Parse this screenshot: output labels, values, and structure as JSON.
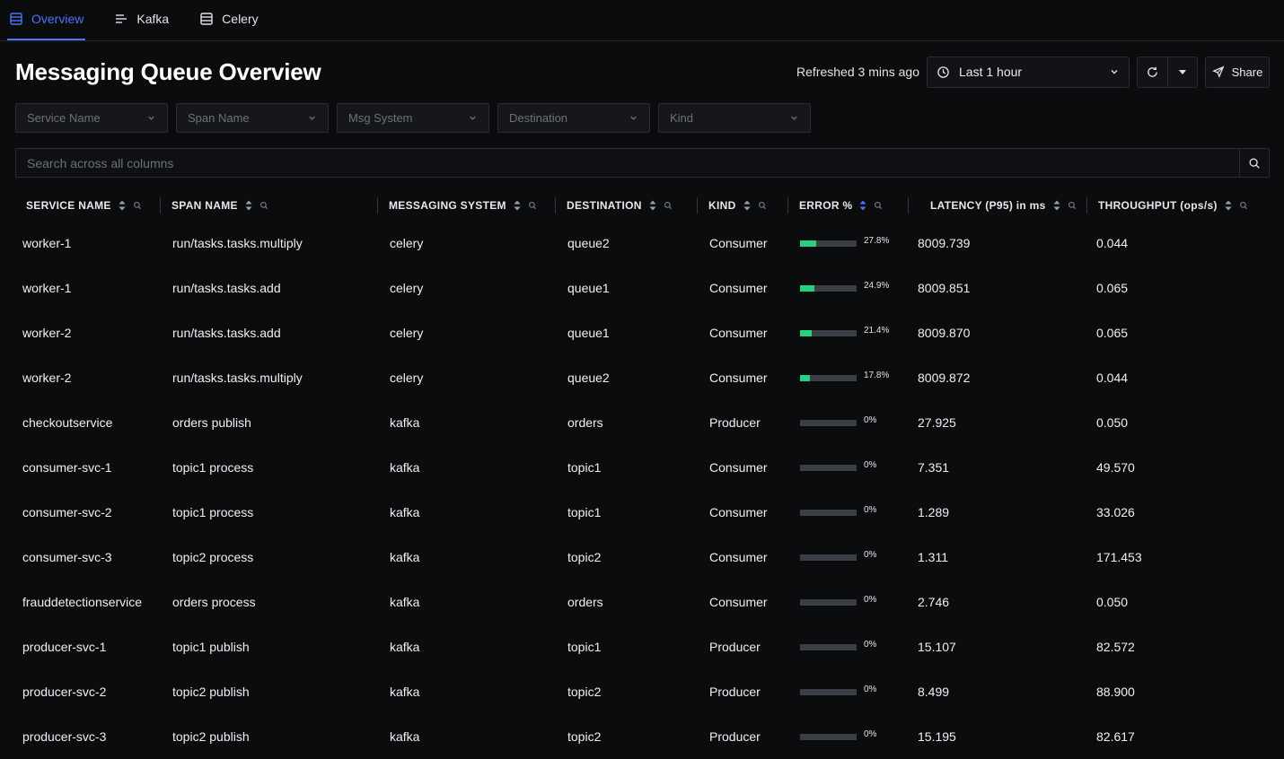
{
  "tabs": [
    {
      "label": "Overview",
      "icon": "list-icon",
      "active": true
    },
    {
      "label": "Kafka",
      "icon": "align-icon",
      "active": false
    },
    {
      "label": "Celery",
      "icon": "table-icon",
      "active": false
    }
  ],
  "header": {
    "title": "Messaging Queue Overview",
    "refreshed": "Refreshed 3 mins ago",
    "time_range": "Last 1 hour",
    "share_label": "Share"
  },
  "filters": [
    "Service Name",
    "Span Name",
    "Msg System",
    "Destination",
    "Kind"
  ],
  "search": {
    "placeholder": "Search across all columns"
  },
  "table": {
    "columns": [
      "SERVICE NAME",
      "SPAN NAME",
      "MESSAGING SYSTEM",
      "DESTINATION",
      "KIND",
      "ERROR %",
      "LATENCY (P95) in ms",
      "THROUGHPUT (ops/s)"
    ],
    "rows": [
      {
        "service": "worker-1",
        "span": "run/tasks.tasks.multiply",
        "system": "celery",
        "destination": "queue2",
        "kind": "Consumer",
        "error_pct": 27.8,
        "error_label": "27.8%",
        "latency": "8009.739",
        "throughput": "0.044"
      },
      {
        "service": "worker-1",
        "span": "run/tasks.tasks.add",
        "system": "celery",
        "destination": "queue1",
        "kind": "Consumer",
        "error_pct": 24.9,
        "error_label": "24.9%",
        "latency": "8009.851",
        "throughput": "0.065"
      },
      {
        "service": "worker-2",
        "span": "run/tasks.tasks.add",
        "system": "celery",
        "destination": "queue1",
        "kind": "Consumer",
        "error_pct": 21.4,
        "error_label": "21.4%",
        "latency": "8009.870",
        "throughput": "0.065"
      },
      {
        "service": "worker-2",
        "span": "run/tasks.tasks.multiply",
        "system": "celery",
        "destination": "queue2",
        "kind": "Consumer",
        "error_pct": 17.8,
        "error_label": "17.8%",
        "latency": "8009.872",
        "throughput": "0.044"
      },
      {
        "service": "checkoutservice",
        "span": "orders publish",
        "system": "kafka",
        "destination": "orders",
        "kind": "Producer",
        "error_pct": 0,
        "error_label": "0%",
        "latency": "27.925",
        "throughput": "0.050"
      },
      {
        "service": "consumer-svc-1",
        "span": "topic1 process",
        "system": "kafka",
        "destination": "topic1",
        "kind": "Consumer",
        "error_pct": 0,
        "error_label": "0%",
        "latency": "7.351",
        "throughput": "49.570"
      },
      {
        "service": "consumer-svc-2",
        "span": "topic1 process",
        "system": "kafka",
        "destination": "topic1",
        "kind": "Consumer",
        "error_pct": 0,
        "error_label": "0%",
        "latency": "1.289",
        "throughput": "33.026"
      },
      {
        "service": "consumer-svc-3",
        "span": "topic2 process",
        "system": "kafka",
        "destination": "topic2",
        "kind": "Consumer",
        "error_pct": 0,
        "error_label": "0%",
        "latency": "1.311",
        "throughput": "171.453"
      },
      {
        "service": "frauddetectionservice",
        "span": "orders process",
        "system": "kafka",
        "destination": "orders",
        "kind": "Consumer",
        "error_pct": 0,
        "error_label": "0%",
        "latency": "2.746",
        "throughput": "0.050"
      },
      {
        "service": "producer-svc-1",
        "span": "topic1 publish",
        "system": "kafka",
        "destination": "topic1",
        "kind": "Producer",
        "error_pct": 0,
        "error_label": "0%",
        "latency": "15.107",
        "throughput": "82.572"
      },
      {
        "service": "producer-svc-2",
        "span": "topic2 publish",
        "system": "kafka",
        "destination": "topic2",
        "kind": "Producer",
        "error_pct": 0,
        "error_label": "0%",
        "latency": "8.499",
        "throughput": "88.900"
      },
      {
        "service": "producer-svc-3",
        "span": "topic2 publish",
        "system": "kafka",
        "destination": "topic2",
        "kind": "Producer",
        "error_pct": 0,
        "error_label": "0%",
        "latency": "15.195",
        "throughput": "82.617"
      }
    ]
  },
  "colors": {
    "accent": "#4e74f8",
    "error_fill": "#26d17f",
    "background": "#0b0c0e"
  }
}
